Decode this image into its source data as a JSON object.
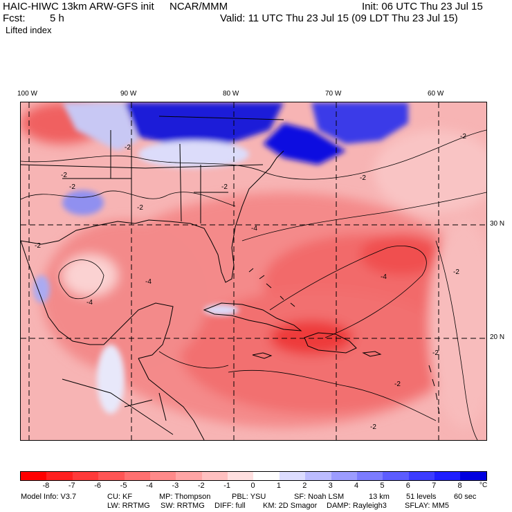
{
  "header": {
    "model": "HAIC-HIWC 13km ARW-GFS init",
    "org": "NCAR/MMM",
    "init": "Init: 06 UTC Thu 23 Jul 15",
    "fcst_label": "Fcst:",
    "fcst_value": "5 h",
    "valid": "Valid: 11 UTC Thu 23 Jul 15 (09 LDT Thu 23 Jul 15)",
    "field": "Lifted index"
  },
  "axes": {
    "longitudes": [
      "100 W",
      "90 W",
      "80 W",
      "70 W",
      "60 W"
    ],
    "latitudes": [
      "30 N",
      "20 N"
    ]
  },
  "contour_labels": [
    "-2",
    "-2",
    "-2",
    "-2",
    "-2",
    "-2",
    "-2",
    "-2",
    "-4",
    "-4",
    "-4",
    "-4",
    "-2",
    "-2",
    "-2",
    "-2",
    "-2"
  ],
  "colorbar": {
    "unit": "°C",
    "ticks": [
      "-8",
      "-7",
      "-6",
      "-5",
      "-4",
      "-3",
      "-2",
      "-1",
      "0",
      "1",
      "2",
      "3",
      "4",
      "5",
      "6",
      "7",
      "8"
    ],
    "colors": [
      "#ff0000",
      "#ff2020",
      "#ff3a3a",
      "#ff5555",
      "#ff7070",
      "#ff8a8a",
      "#ffa5a5",
      "#ffc0c0",
      "#ffe0e0",
      "#ffffff",
      "#dcdcff",
      "#bcbcff",
      "#9c9cff",
      "#7c7cff",
      "#5c5cff",
      "#3c3cff",
      "#1e1eff",
      "#0000e0"
    ]
  },
  "footer": {
    "line1": [
      "Model Info: V3.7",
      "CU: KF",
      "MP: Thompson",
      "PBL: YSU",
      "SF: Noah LSM",
      "13 km",
      "51 levels",
      "60 sec"
    ],
    "line2": [
      "LW: RRTMG",
      "SW: RRTMG",
      "DIFF: full",
      "KM: 2D Smagor",
      "DAMP: Rayleigh3",
      "SFLAY: MM5"
    ]
  }
}
